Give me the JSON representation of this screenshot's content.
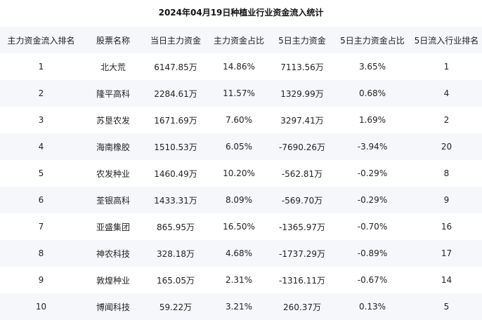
{
  "title": "2024年04月19日种植业行业资金流入统计",
  "columns": [
    "主力资金流入排名",
    "股票名称",
    "当日主力资金",
    "主力资金占比",
    "5日主力资金",
    "5日主力资金占比",
    "5日流入行业排名"
  ],
  "rows": [
    [
      "1",
      "北大荒",
      "6147.85万",
      "14.86%",
      "7113.56万",
      "3.65%",
      "1"
    ],
    [
      "2",
      "隆平高科",
      "2284.61万",
      "11.57%",
      "1329.99万",
      "0.68%",
      "4"
    ],
    [
      "3",
      "苏垦农发",
      "1671.69万",
      "7.60%",
      "3297.41万",
      "1.69%",
      "2"
    ],
    [
      "4",
      "海南橡胶",
      "1510.53万",
      "6.05%",
      "-7690.26万",
      "-3.94%",
      "20"
    ],
    [
      "5",
      "农发种业",
      "1460.49万",
      "10.20%",
      "-562.81万",
      "-0.29%",
      "8"
    ],
    [
      "6",
      "荃银高科",
      "1433.31万",
      "8.09%",
      "-569.70万",
      "-0.29%",
      "9"
    ],
    [
      "7",
      "亚盛集团",
      "865.95万",
      "16.50%",
      "-1365.97万",
      "-0.70%",
      "16"
    ],
    [
      "8",
      "神农科技",
      "328.18万",
      "4.68%",
      "-1737.29万",
      "-0.89%",
      "17"
    ],
    [
      "9",
      "敦煌种业",
      "165.05万",
      "2.31%",
      "-1316.11万",
      "-0.67%",
      "14"
    ],
    [
      "10",
      "博闻科技",
      "59.22万",
      "3.21%",
      "260.37万",
      "0.13%",
      "5"
    ]
  ]
}
